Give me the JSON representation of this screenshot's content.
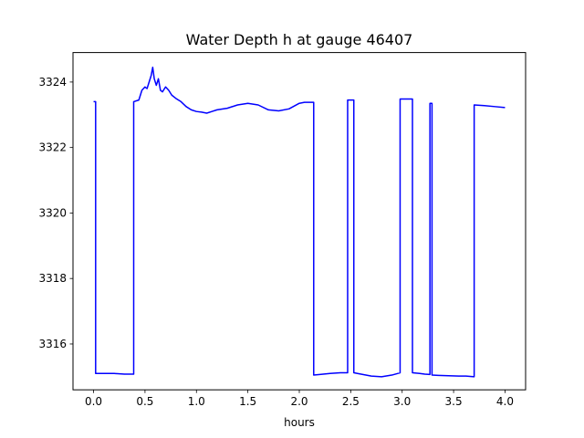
{
  "chart_data": {
    "type": "line",
    "title": "Water Depth h at gauge 46407",
    "xlabel": "hours",
    "ylabel": "",
    "xlim": [
      -0.2,
      4.2
    ],
    "ylim": [
      3314.6,
      3324.9
    ],
    "xticks": [
      0.0,
      0.5,
      1.0,
      1.5,
      2.0,
      2.5,
      3.0,
      3.5,
      4.0
    ],
    "xtick_labels": [
      "0.0",
      "0.5",
      "1.0",
      "1.5",
      "2.0",
      "2.5",
      "3.0",
      "3.5",
      "4.0"
    ],
    "yticks": [
      3316,
      3318,
      3320,
      3322,
      3324
    ],
    "ytick_labels": [
      "3316",
      "3318",
      "3320",
      "3322",
      "3324"
    ],
    "grid": false,
    "series": [
      {
        "color": "#0000ff",
        "x": [
          0.0,
          0.02,
          0.02,
          0.1,
          0.2,
          0.3,
          0.39,
          0.39,
          0.44,
          0.47,
          0.5,
          0.52,
          0.54,
          0.56,
          0.575,
          0.59,
          0.61,
          0.63,
          0.65,
          0.67,
          0.7,
          0.73,
          0.76,
          0.8,
          0.85,
          0.9,
          0.95,
          1.0,
          1.05,
          1.1,
          1.15,
          1.2,
          1.3,
          1.4,
          1.5,
          1.6,
          1.7,
          1.8,
          1.9,
          2.0,
          2.05,
          2.14,
          2.14,
          2.2,
          2.3,
          2.4,
          2.47,
          2.47,
          2.53,
          2.53,
          2.6,
          2.7,
          2.8,
          2.9,
          2.98,
          2.98,
          3.1,
          3.1,
          3.17,
          3.22,
          3.27,
          3.27,
          3.29,
          3.29,
          3.35,
          3.45,
          3.55,
          3.62,
          3.7,
          3.7,
          3.8,
          3.9,
          4.0
        ],
        "y": [
          3323.4,
          3323.4,
          3315.1,
          3315.1,
          3315.1,
          3315.08,
          3315.08,
          3323.4,
          3323.45,
          3323.75,
          3323.85,
          3323.8,
          3324.0,
          3324.2,
          3324.45,
          3324.1,
          3323.9,
          3324.1,
          3323.75,
          3323.7,
          3323.85,
          3323.75,
          3323.6,
          3323.5,
          3323.4,
          3323.25,
          3323.15,
          3323.1,
          3323.08,
          3323.05,
          3323.1,
          3323.15,
          3323.2,
          3323.3,
          3323.35,
          3323.3,
          3323.15,
          3323.12,
          3323.18,
          3323.35,
          3323.38,
          3323.38,
          3315.05,
          3315.07,
          3315.1,
          3315.12,
          3315.12,
          3323.45,
          3323.45,
          3315.12,
          3315.08,
          3315.02,
          3315.0,
          3315.05,
          3315.12,
          3323.48,
          3323.48,
          3315.12,
          3315.1,
          3315.08,
          3315.07,
          3323.35,
          3323.35,
          3315.05,
          3315.04,
          3315.03,
          3315.02,
          3315.02,
          3315.0,
          3323.3,
          3323.28,
          3323.25,
          3323.22
        ]
      }
    ]
  }
}
